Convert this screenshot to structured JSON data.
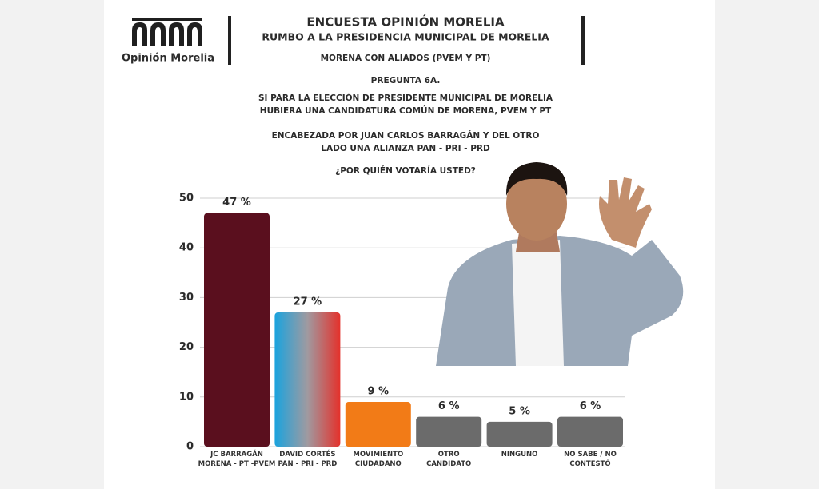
{
  "chart_data": {
    "type": "bar",
    "brand": "Opinión Morelia",
    "title": "ENCUESTA OPINIÓN MORELIA",
    "subtitle": "RUMBO A LA PRESIDENCIA MUNICIPAL DE MORELIA",
    "header_lines": [
      "MORENA CON ALIADOS (PVEM Y PT)",
      "PREGUNTA 6A.",
      "SI PARA LA ELECCIÓN DE PRESIDENTE MUNICIPAL DE MORELIA",
      "HUBIERA UNA CANDIDATURA COMÚN DE MORENA, PVEM Y PT",
      "ENCABEZADA POR JUAN CARLOS BARRAGÁN Y DEL OTRO",
      "LADO UNA ALIANZA PAN - PRI - PRD",
      "¿POR QUIÉN VOTARÍA USTED?"
    ],
    "categories": [
      "JC BARRAGÁN\nMORENA - PT -PVEM",
      "DAVID CORTÉS\nPAN - PRI - PRD",
      "MOVIMIENTO\nCIUDADANO",
      "OTRO\nCANDIDATO",
      "NINGUNO",
      "NO SABE / NO\nCONTESTÓ"
    ],
    "values": [
      47,
      27,
      9,
      6,
      5,
      6
    ],
    "value_labels": [
      "47 %",
      "27 %",
      "9 %",
      "6 %",
      "5 %",
      "6 %"
    ],
    "colors": [
      "#5a0f1e",
      [
        "#1aa3de",
        "#a09aa0",
        "#e4312b"
      ],
      "#f27b17",
      "#6b6b6b",
      "#6b6b6b",
      "#6b6b6b"
    ],
    "ylim": [
      0,
      50
    ],
    "yticks": [
      0,
      10,
      20,
      30,
      40,
      50
    ],
    "grid": true
  }
}
